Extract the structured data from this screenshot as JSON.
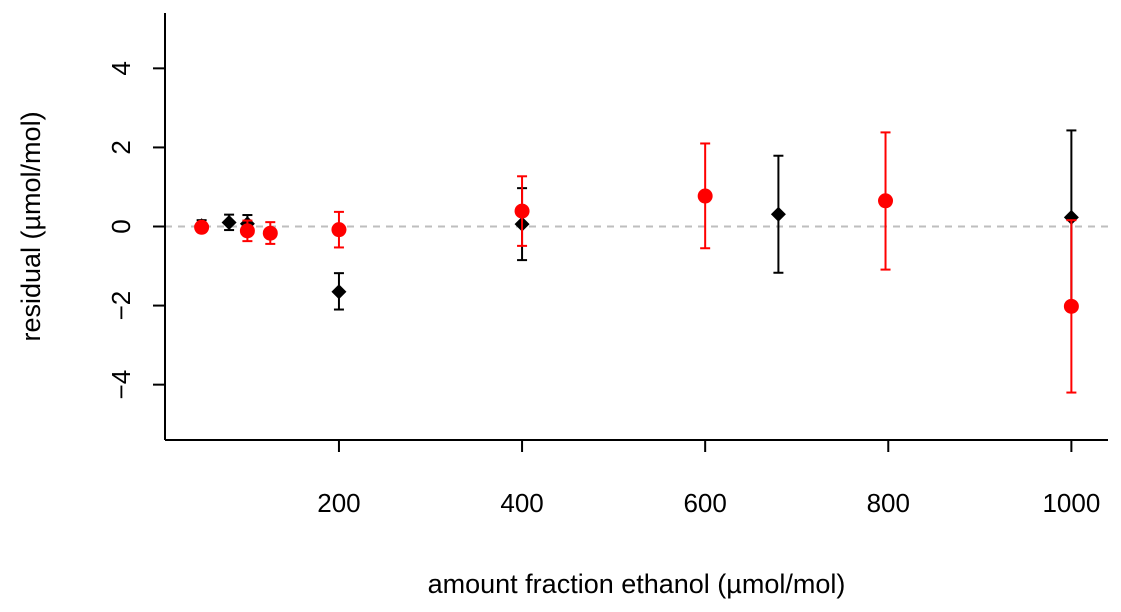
{
  "chart_data": {
    "type": "scatter",
    "title": "",
    "xlabel": "amount fraction ethanol (µmol/mol)",
    "ylabel": "residual (µmol/mol)",
    "xlim": [
      10,
      1040
    ],
    "ylim": [
      -5.4,
      5.4
    ],
    "x_ticks": [
      200,
      400,
      600,
      800,
      1000
    ],
    "y_ticks": [
      -4,
      -2,
      0,
      2,
      4
    ],
    "x_tick_labels": [
      "200",
      "400",
      "600",
      "800",
      "1000"
    ],
    "y_tick_labels": [
      "−4",
      "−2",
      "0",
      "2",
      "4"
    ],
    "reference_line": {
      "y": 0,
      "style": "dashed",
      "color": "#bebebe"
    },
    "grid": false,
    "legend": "none",
    "series": [
      {
        "marker": "diamond",
        "color": "#000000",
        "points": [
          {
            "x": 50,
            "y": 0.02,
            "ylo": -0.12,
            "yhi": 0.16
          },
          {
            "x": 80,
            "y": 0.1,
            "ylo": -0.09,
            "yhi": 0.3
          },
          {
            "x": 100,
            "y": 0.07,
            "ylo": -0.15,
            "yhi": 0.29
          },
          {
            "x": 200,
            "y": -1.65,
            "ylo": -2.1,
            "yhi": -1.18
          },
          {
            "x": 400,
            "y": 0.06,
            "ylo": -0.85,
            "yhi": 0.97
          },
          {
            "x": 680,
            "y": 0.31,
            "ylo": -1.17,
            "yhi": 1.79
          },
          {
            "x": 1000,
            "y": 0.23,
            "ylo": -1.98,
            "yhi": 2.43
          }
        ]
      },
      {
        "marker": "circle",
        "color": "#ff0000",
        "points": [
          {
            "x": 50,
            "y": -0.02,
            "ylo": -0.1,
            "yhi": 0.06
          },
          {
            "x": 100,
            "y": -0.11,
            "ylo": -0.37,
            "yhi": 0.15
          },
          {
            "x": 125,
            "y": -0.17,
            "ylo": -0.44,
            "yhi": 0.11
          },
          {
            "x": 200,
            "y": -0.08,
            "ylo": -0.53,
            "yhi": 0.37
          },
          {
            "x": 400,
            "y": 0.39,
            "ylo": -0.49,
            "yhi": 1.27
          },
          {
            "x": 600,
            "y": 0.77,
            "ylo": -0.55,
            "yhi": 2.1
          },
          {
            "x": 797,
            "y": 0.65,
            "ylo": -1.09,
            "yhi": 2.38
          },
          {
            "x": 1000,
            "y": -2.02,
            "ylo": -4.2,
            "yhi": 0.16
          }
        ]
      }
    ]
  }
}
